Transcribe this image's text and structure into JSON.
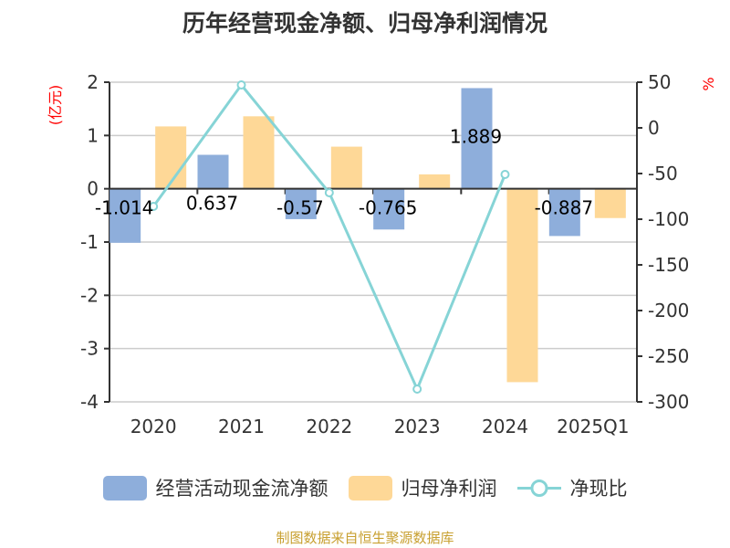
{
  "chart_data": {
    "type": "bar",
    "title": "历年经营现金净额、归母净利润情况",
    "categories": [
      "2020",
      "2021",
      "2022",
      "2023",
      "2024",
      "2025Q1"
    ],
    "ylabel": "(亿元)",
    "y2label": "%",
    "ylim": [
      -4,
      2
    ],
    "y2lim": [
      -300,
      50
    ],
    "yticks": [
      2,
      1,
      0,
      -1,
      -2,
      -3,
      -4
    ],
    "y2ticks": [
      50,
      0,
      -50,
      -100,
      -150,
      -200,
      -250,
      -300
    ],
    "grid": true,
    "legend_position": "bottom",
    "series": [
      {
        "name": "经营活动现金流净额",
        "type": "bar",
        "axis": "left",
        "color": "#8eaedb",
        "values": [
          -1.014,
          0.637,
          -0.57,
          -0.765,
          1.889,
          -0.887
        ],
        "labels": [
          "-1.014",
          "0.637",
          "-0.57",
          "-0.765",
          "1.889",
          "-0.887"
        ]
      },
      {
        "name": "归母净利润",
        "type": "bar",
        "axis": "left",
        "color": "#fed897",
        "values": [
          1.17,
          1.36,
          0.79,
          0.27,
          -3.63,
          -0.55
        ]
      },
      {
        "name": "净现比",
        "type": "line",
        "axis": "right",
        "color": "#86d4d6",
        "values": [
          -86,
          47,
          -71,
          -286,
          -51,
          null
        ]
      }
    ]
  },
  "footer": "制图数据来自恒生聚源数据库"
}
